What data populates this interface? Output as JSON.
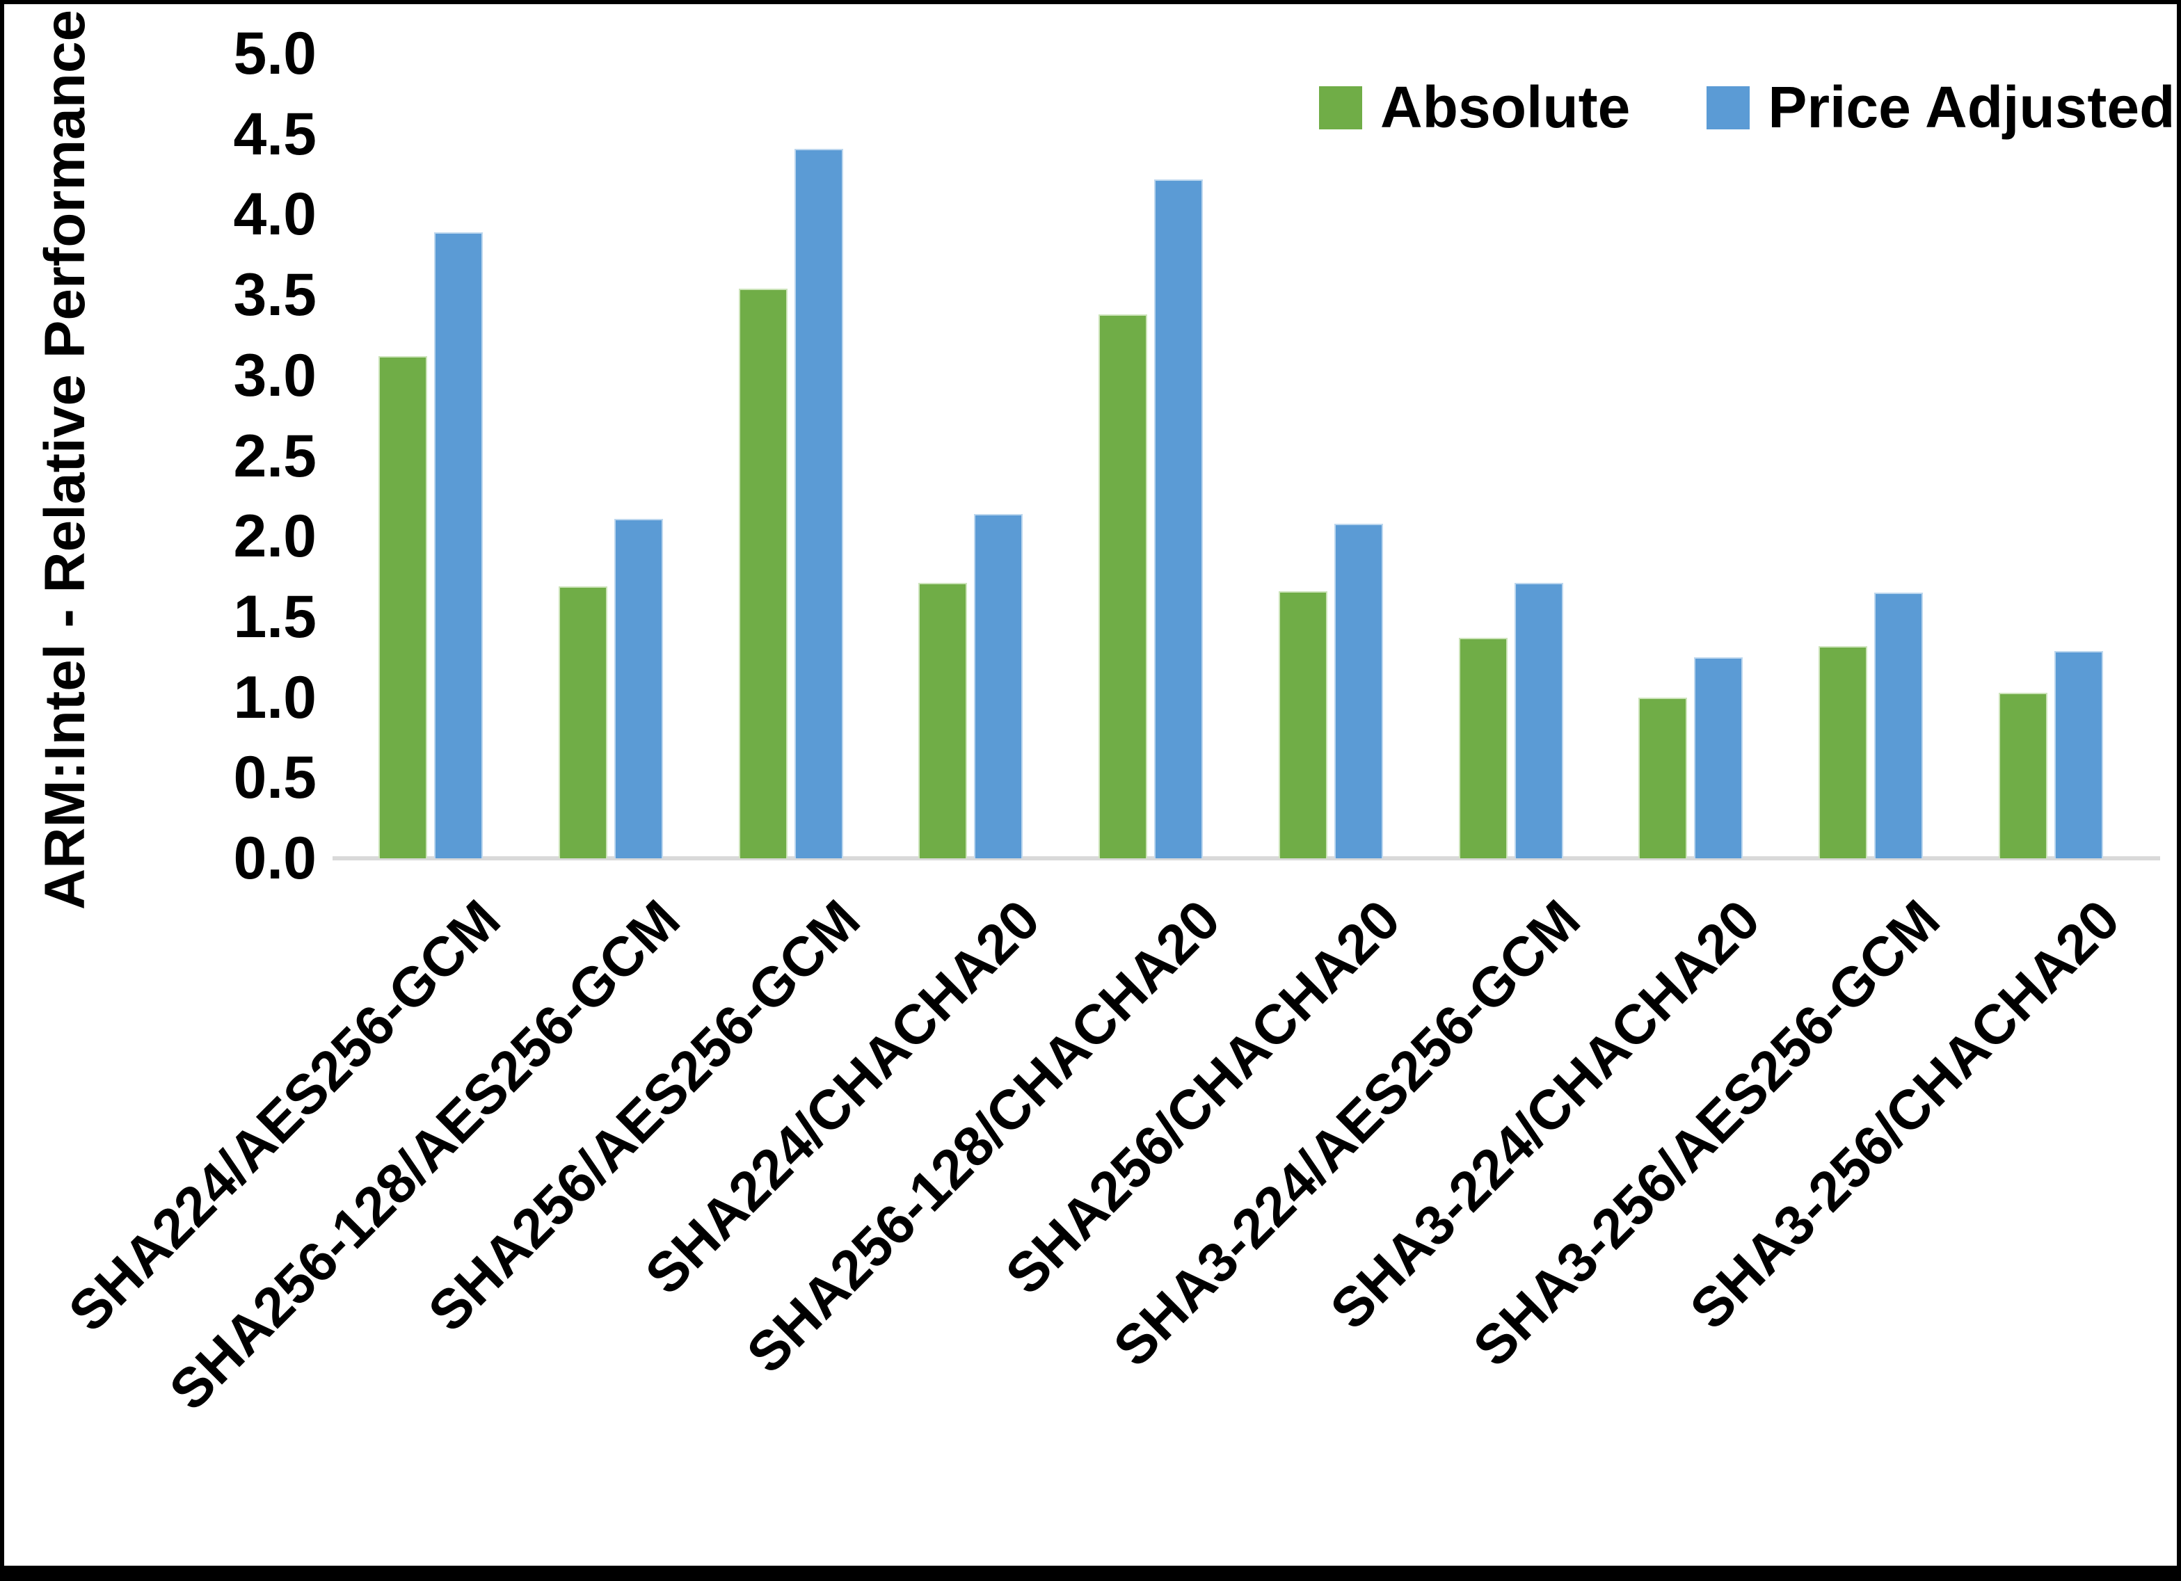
{
  "chart_data": {
    "type": "bar",
    "title": "",
    "ylabel": "ARM:Intel - Relative Performance",
    "xlabel": "",
    "ylim": [
      0,
      5
    ],
    "ytick_step": 0.5,
    "ytick_labels": [
      "0.0",
      "0.5",
      "1.0",
      "1.5",
      "2.0",
      "2.5",
      "3.0",
      "3.5",
      "4.0",
      "4.5",
      "5.0"
    ],
    "grid": false,
    "legend_position": "top-right",
    "categories": [
      "SHA224/AES256-GCM",
      "SHA256-128/AES256-GCM",
      "SHA256/AES256-GCM",
      "SHA224/CHACHA20",
      "SHA256-128/CHACHA20",
      "SHA256/CHACHA20",
      "SHA3-224/AES256-GCM",
      "SHA3-224/CHACHA20",
      "SHA3-256/AES256-GCM",
      "SHA3-256/CHACHA20"
    ],
    "series": [
      {
        "name": "Absolute",
        "color": "#70AD47",
        "values": [
          3.12,
          1.69,
          3.54,
          1.71,
          3.38,
          1.66,
          1.37,
          1.0,
          1.32,
          1.03
        ]
      },
      {
        "name": "Price Adjusted",
        "color": "#5B9BD5",
        "values": [
          3.89,
          2.11,
          4.41,
          2.14,
          4.22,
          2.08,
          1.71,
          1.25,
          1.65,
          1.29
        ]
      }
    ]
  },
  "colors": {
    "background": "#FFFFFF",
    "frame_border": "#000000",
    "axis_line": "#D9D9D9",
    "text": "#000000",
    "series_absolute": "#70AD47",
    "series_price_adjusted": "#5B9BD5"
  }
}
